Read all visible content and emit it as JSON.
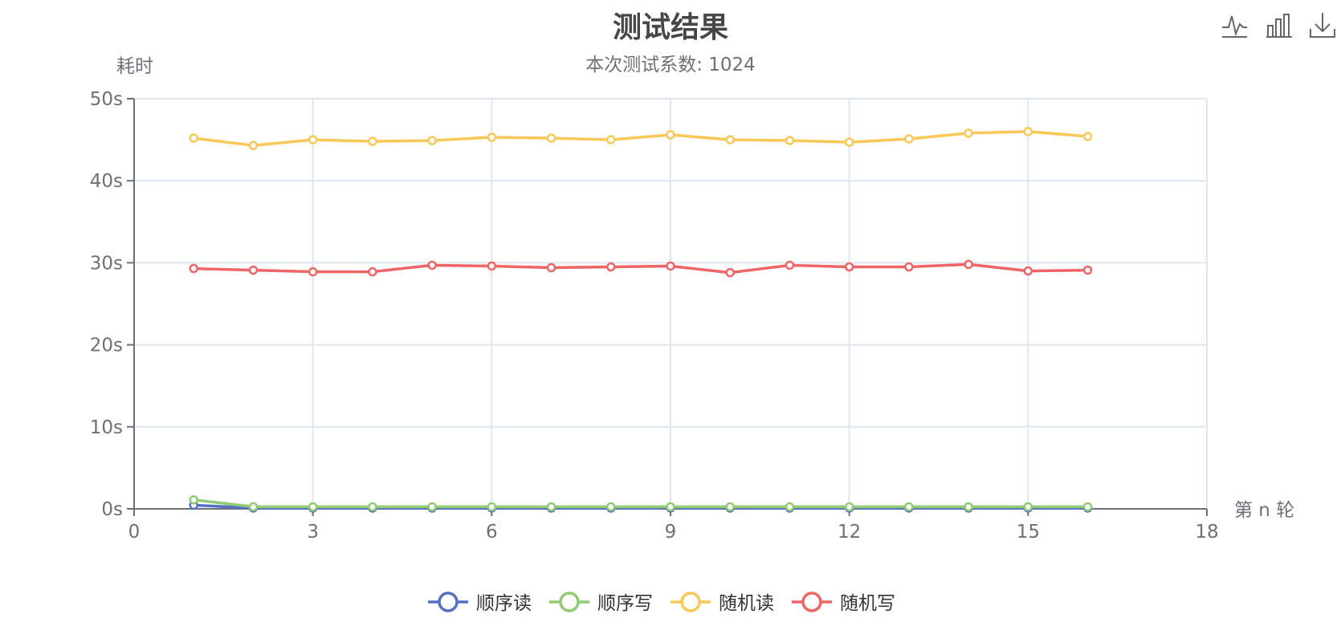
{
  "chart_data": {
    "type": "line",
    "title": "测试结果",
    "subtitle": "本次测试系数: 1024",
    "ylabel": "耗时",
    "xlabel": "第 n 轮",
    "xlim": [
      0,
      18
    ],
    "ylim": [
      0,
      50
    ],
    "x_ticks": [
      "0",
      "3",
      "6",
      "9",
      "12",
      "15",
      "18"
    ],
    "y_ticks": [
      "0s",
      "10s",
      "20s",
      "30s",
      "40s",
      "50s"
    ],
    "grid": true,
    "legend_position": "bottom",
    "x": [
      1,
      2,
      3,
      4,
      5,
      6,
      7,
      8,
      9,
      10,
      11,
      12,
      13,
      14,
      15,
      16
    ],
    "series": [
      {
        "name": "顺序读",
        "color": "#5470c6",
        "values": [
          0.45,
          0.1,
          0.1,
          0.1,
          0.1,
          0.1,
          0.1,
          0.1,
          0.1,
          0.1,
          0.1,
          0.1,
          0.1,
          0.1,
          0.1,
          0.1
        ]
      },
      {
        "name": "顺序写",
        "color": "#91cc75",
        "values": [
          1.1,
          0.25,
          0.25,
          0.25,
          0.25,
          0.25,
          0.25,
          0.25,
          0.25,
          0.25,
          0.25,
          0.25,
          0.25,
          0.25,
          0.25,
          0.25
        ]
      },
      {
        "name": "随机读",
        "color": "#fac858",
        "values": [
          45.2,
          44.3,
          45.0,
          44.8,
          44.9,
          45.3,
          45.2,
          45.0,
          45.6,
          45.0,
          44.9,
          44.7,
          45.1,
          45.8,
          46.0,
          45.4
        ]
      },
      {
        "name": "随机写",
        "color": "#ee6666",
        "values": [
          29.3,
          29.1,
          28.9,
          28.9,
          29.7,
          29.6,
          29.4,
          29.5,
          29.6,
          28.8,
          29.7,
          29.5,
          29.5,
          29.8,
          29.0,
          29.1
        ]
      }
    ]
  },
  "toolbox": {
    "icons": [
      "line-chart-icon",
      "bar-chart-icon",
      "download-icon"
    ]
  }
}
